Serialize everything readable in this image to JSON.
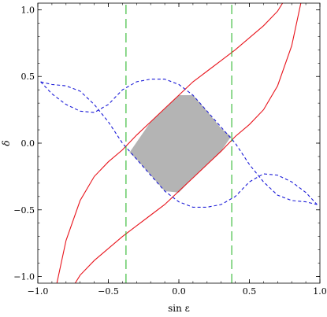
{
  "chart_data": {
    "type": "line",
    "xlabel": "sin ε",
    "ylabel": "δ",
    "xlim": [
      -1.0,
      1.0
    ],
    "ylim": [
      -1.05,
      1.05
    ],
    "x_ticks": [
      -1.0,
      -0.5,
      0.0,
      0.5,
      1.0
    ],
    "x_tick_labels": [
      "−1.0",
      "−0.5",
      "0.0",
      "0.5",
      "1.0"
    ],
    "y_ticks": [
      -1.0,
      -0.5,
      0.0,
      0.5,
      1.0
    ],
    "y_tick_labels": [
      "−1.0",
      "−0.5",
      "0.0",
      "0.5",
      "1.0"
    ],
    "grid": false,
    "series": [
      {
        "style": "solid",
        "color": "#e8141c",
        "x": [
          -0.865,
          -0.8,
          -0.7,
          -0.6,
          -0.5,
          -0.4,
          -0.3,
          -0.2,
          -0.1,
          0.0,
          0.1,
          0.2,
          0.3,
          0.4,
          0.5,
          0.6,
          0.7,
          0.735
        ],
        "y": [
          -1.05,
          -0.73,
          -0.43,
          -0.25,
          -0.14,
          -0.05,
          0.06,
          0.16,
          0.26,
          0.36,
          0.46,
          0.54,
          0.62,
          0.7,
          0.79,
          0.88,
          0.99,
          1.05
        ]
      },
      {
        "style": "solid",
        "color": "#e8141c",
        "x": [
          -0.735,
          -0.7,
          -0.6,
          -0.5,
          -0.4,
          -0.3,
          -0.2,
          -0.1,
          0.0,
          0.1,
          0.2,
          0.3,
          0.4,
          0.5,
          0.6,
          0.7,
          0.8,
          0.865
        ],
        "y": [
          -1.05,
          -0.99,
          -0.88,
          -0.79,
          -0.7,
          -0.62,
          -0.54,
          -0.46,
          -0.36,
          -0.26,
          -0.16,
          -0.06,
          0.05,
          0.14,
          0.25,
          0.43,
          0.73,
          1.05
        ]
      },
      {
        "style": "dashed",
        "color": "#1c1cd8",
        "x": [
          -0.98,
          -0.9,
          -0.8,
          -0.7,
          -0.6,
          -0.5,
          -0.4,
          -0.3,
          -0.2,
          -0.1,
          0.0,
          0.1,
          0.2,
          0.3,
          0.4,
          0.5,
          0.6,
          0.7,
          0.8,
          0.9,
          0.98
        ],
        "y": [
          0.46,
          0.37,
          0.29,
          0.24,
          0.23,
          0.29,
          0.4,
          0.46,
          0.48,
          0.48,
          0.44,
          0.36,
          0.24,
          0.12,
          0.0,
          -0.16,
          -0.29,
          -0.39,
          -0.43,
          -0.44,
          -0.46
        ]
      },
      {
        "style": "dashed",
        "color": "#1c1cd8",
        "x": [
          -0.98,
          -0.9,
          -0.8,
          -0.7,
          -0.6,
          -0.5,
          -0.4,
          -0.3,
          -0.2,
          -0.1,
          0.0,
          0.1,
          0.2,
          0.3,
          0.4,
          0.5,
          0.6,
          0.7,
          0.8,
          0.9,
          0.98
        ],
        "y": [
          0.46,
          0.44,
          0.43,
          0.39,
          0.29,
          0.16,
          0.0,
          -0.12,
          -0.24,
          -0.36,
          -0.44,
          -0.48,
          -0.48,
          -0.46,
          -0.4,
          -0.29,
          -0.23,
          -0.24,
          -0.29,
          -0.37,
          -0.46
        ]
      },
      {
        "style": "long-dashed",
        "color": "#2eb82e",
        "x": [
          -0.375,
          -0.375
        ],
        "y": [
          -1.05,
          1.05
        ]
      },
      {
        "style": "long-dashed",
        "color": "#2eb82e",
        "x": [
          0.375,
          0.375
        ],
        "y": [
          -1.05,
          1.05
        ]
      }
    ],
    "shaded_region": {
      "color": "#b4b4b4",
      "x": [
        -0.35,
        -0.2,
        -0.1,
        0.0,
        0.1,
        0.2,
        0.3,
        0.37,
        0.3,
        0.2,
        0.1,
        0.0,
        -0.1,
        -0.2,
        -0.3,
        -0.35
      ],
      "y": [
        -0.07,
        0.16,
        0.26,
        0.36,
        0.36,
        0.24,
        0.11,
        0.05,
        -0.06,
        -0.16,
        -0.26,
        -0.37,
        -0.36,
        -0.24,
        -0.12,
        -0.07
      ]
    }
  }
}
